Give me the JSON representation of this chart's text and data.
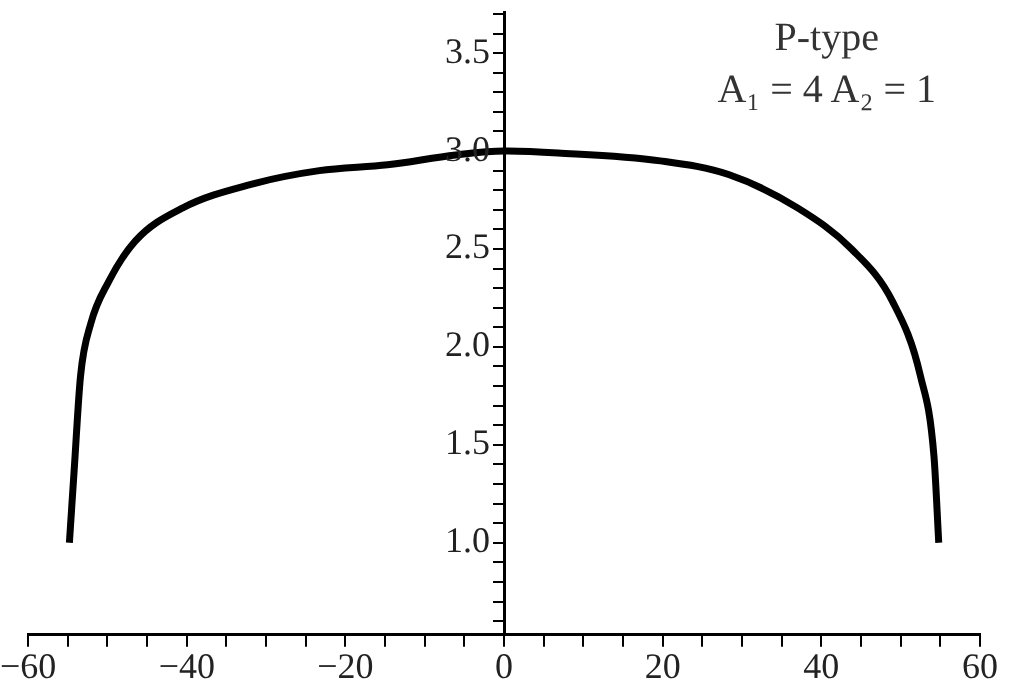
{
  "chart_data": {
    "type": "line",
    "annotations": [
      "P-type",
      "A₁ = 4 A₂ = 1"
    ],
    "xlim": [
      -60,
      60
    ],
    "ylim": [
      0.53,
      3.71
    ],
    "xticks": [
      {
        "value": -60,
        "label": "−60"
      },
      {
        "value": -55,
        "label": null
      },
      {
        "value": -50,
        "label": null
      },
      {
        "value": -45,
        "label": null
      },
      {
        "value": -40,
        "label": "−40"
      },
      {
        "value": -35,
        "label": null
      },
      {
        "value": -30,
        "label": null
      },
      {
        "value": -25,
        "label": null
      },
      {
        "value": -20,
        "label": "−20"
      },
      {
        "value": -15,
        "label": null
      },
      {
        "value": -10,
        "label": null
      },
      {
        "value": -5,
        "label": null
      },
      0,
      {
        "value": 5,
        "label": null
      },
      {
        "value": 10,
        "label": null
      },
      {
        "value": 15,
        "label": null
      },
      20,
      {
        "value": 25,
        "label": null
      },
      {
        "value": 30,
        "label": null
      },
      {
        "value": 35,
        "label": null
      },
      40,
      {
        "value": 45,
        "label": null
      },
      {
        "value": 50,
        "label": null
      },
      {
        "value": 55,
        "label": null
      },
      60
    ],
    "yticks": [
      {
        "value": 0.6,
        "label": null
      },
      {
        "value": 0.7,
        "label": null
      },
      {
        "value": 0.8,
        "label": null
      },
      {
        "value": 0.9,
        "label": null
      },
      {
        "value": 1,
        "label": "1.0"
      },
      {
        "value": 1.1,
        "label": null
      },
      {
        "value": 1.2,
        "label": null
      },
      {
        "value": 1.3,
        "label": null
      },
      {
        "value": 1.4,
        "label": null
      },
      1.5,
      {
        "value": 1.6,
        "label": null
      },
      {
        "value": 1.7,
        "label": null
      },
      {
        "value": 1.8,
        "label": null
      },
      {
        "value": 1.9,
        "label": null
      },
      {
        "value": 2,
        "label": "2.0"
      },
      {
        "value": 2.1,
        "label": null
      },
      {
        "value": 2.2,
        "label": null
      },
      {
        "value": 2.3,
        "label": null
      },
      {
        "value": 2.4,
        "label": null
      },
      2.5,
      {
        "value": 2.6,
        "label": null
      },
      {
        "value": 2.7,
        "label": null
      },
      {
        "value": 2.8,
        "label": null
      },
      {
        "value": 2.9,
        "label": null
      },
      {
        "value": 3,
        "label": "3.0"
      },
      {
        "value": 3.1,
        "label": null
      },
      {
        "value": 3.2,
        "label": null
      },
      {
        "value": 3.3,
        "label": null
      },
      {
        "value": 3.4,
        "label": null
      },
      3.5,
      {
        "value": 3.6,
        "label": null
      },
      {
        "value": 3.7,
        "label": null
      }
    ],
    "grid": false,
    "legend": false,
    "marker": "none",
    "line_style": "solid",
    "series": [
      {
        "color": "#000000",
        "x": [
          -54.8,
          -54.2,
          -53.4,
          -52.1,
          -49.9,
          -46.5,
          -40.5,
          -31.9,
          -23.3,
          -14.7,
          -6.1,
          0,
          6.8,
          19.7,
          28.3,
          37,
          43.8,
          49,
          52.5,
          54.2,
          54.8
        ],
        "values": [
          1.0,
          1.37,
          1.85,
          2.12,
          2.33,
          2.54,
          2.71,
          2.83,
          2.9,
          2.93,
          2.98,
          3.0,
          2.99,
          2.95,
          2.88,
          2.71,
          2.5,
          2.23,
          1.85,
          1.44,
          1.0
        ]
      }
    ]
  }
}
